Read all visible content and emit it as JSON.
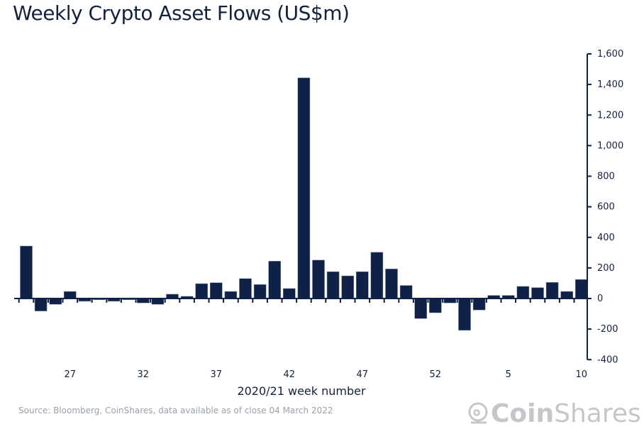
{
  "title": "Weekly Crypto Asset Flows (US$m)",
  "source": "Source: Bloomberg, CoinShares, data available as of close 04 March 2022",
  "logo": {
    "bold": "Coin",
    "light": "Shares"
  },
  "chart_data": {
    "type": "bar",
    "title": "Weekly Crypto Asset Flows (US$m)",
    "xlabel": "2020/21 week number",
    "ylabel": "",
    "ylim": [
      -400,
      1600
    ],
    "yticks": [
      -400,
      -200,
      0,
      200,
      400,
      600,
      800,
      1000,
      1200,
      1400,
      1600
    ],
    "ytick_labels": [
      "-400",
      "-200",
      "0",
      "200",
      "400",
      "600",
      "800",
      "1,000",
      "1,200",
      "1,400",
      "1,600"
    ],
    "xtick_labels": [
      "27",
      "32",
      "37",
      "42",
      "47",
      "52",
      "5",
      "10"
    ],
    "grid": false,
    "bar_color": "#0f2146",
    "categories": [
      "24",
      "25",
      "26",
      "27",
      "28",
      "29",
      "30",
      "31",
      "32",
      "33",
      "34",
      "35",
      "36",
      "37",
      "38",
      "39",
      "40",
      "41",
      "42",
      "43",
      "44",
      "45",
      "46",
      "47",
      "48",
      "49",
      "50",
      "51",
      "52",
      "1",
      "2",
      "3",
      "4",
      "5",
      "6",
      "7",
      "8",
      "9",
      "10"
    ],
    "values": [
      343,
      -82,
      -38,
      46,
      -18,
      -8,
      -18,
      -8,
      -29,
      -38,
      28,
      14,
      97,
      103,
      46,
      130,
      91,
      244,
      65,
      1443,
      251,
      175,
      148,
      175,
      302,
      193,
      85,
      -131,
      -93,
      -29,
      -208,
      -75,
      20,
      20,
      79,
      71,
      105,
      46,
      124
    ]
  }
}
